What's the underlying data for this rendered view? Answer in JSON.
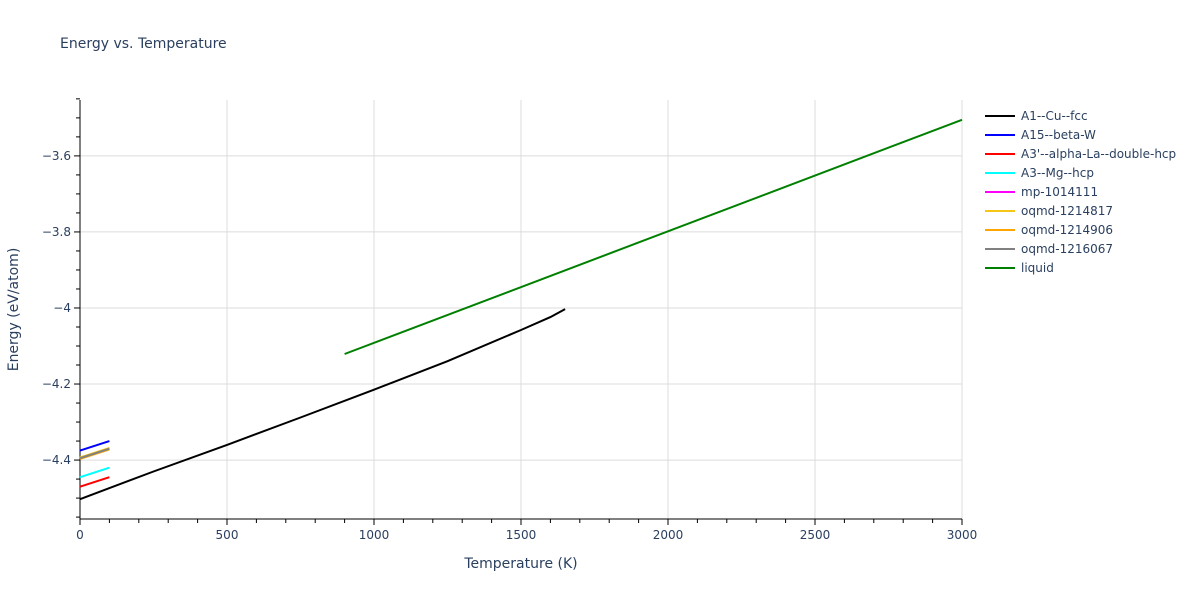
{
  "chart_data": {
    "type": "line",
    "title": "Energy vs. Temperature",
    "xlabel": "Temperature (K)",
    "ylabel": "Energy (eV/atom)",
    "xlim": [
      0,
      3000
    ],
    "ylim": [
      -4.555,
      -3.453
    ],
    "x_ticks": [
      0,
      500,
      1000,
      1500,
      2000,
      2500,
      3000
    ],
    "x_tick_labels": [
      "0",
      "500",
      "1000",
      "1500",
      "2000",
      "2500",
      "3000"
    ],
    "y_ticks": [
      -3.6,
      -3.8,
      -4.0,
      -4.2,
      -4.4
    ],
    "y_tick_labels": [
      "−3.6",
      "−3.8",
      "−4",
      "−4.2",
      "−4.4"
    ],
    "grid": true,
    "legend_position": "right",
    "series": [
      {
        "name": "A1--Cu--fcc",
        "color": "#000000",
        "x": [
          0,
          250,
          500,
          750,
          1000,
          1250,
          1500,
          1600,
          1650
        ],
        "y": [
          -4.503,
          -4.43,
          -4.36,
          -4.288,
          -4.215,
          -4.14,
          -4.058,
          -4.024,
          -4.003
        ]
      },
      {
        "name": "A15--beta-W",
        "color": "#0000ff",
        "x": [
          0,
          100
        ],
        "y": [
          -4.375,
          -4.35
        ]
      },
      {
        "name": "A3'--alpha-La--double-hcp",
        "color": "#ff0000",
        "x": [
          0,
          100
        ],
        "y": [
          -4.47,
          -4.445
        ]
      },
      {
        "name": "A3--Mg--hcp",
        "color": "#00ffff",
        "x": [
          0,
          100
        ],
        "y": [
          -4.445,
          -4.42
        ]
      },
      {
        "name": "mp-1014111",
        "color": "#ff00ff",
        "x": [
          0,
          100
        ],
        "y": [
          -4.395,
          -4.37
        ]
      },
      {
        "name": "oqmd-1214817",
        "color": "#f5c518",
        "x": [
          0,
          100
        ],
        "y": [
          -4.393,
          -4.368
        ]
      },
      {
        "name": "oqmd-1214906",
        "color": "#ffa500",
        "x": [
          0,
          100
        ],
        "y": [
          -4.397,
          -4.372
        ]
      },
      {
        "name": "oqmd-1216067",
        "color": "#808080",
        "x": [
          0,
          100
        ],
        "y": [
          -4.395,
          -4.37
        ]
      },
      {
        "name": "liquid",
        "color": "#008000",
        "x": [
          900,
          3000
        ],
        "y": [
          -4.121,
          -3.505
        ]
      }
    ]
  }
}
